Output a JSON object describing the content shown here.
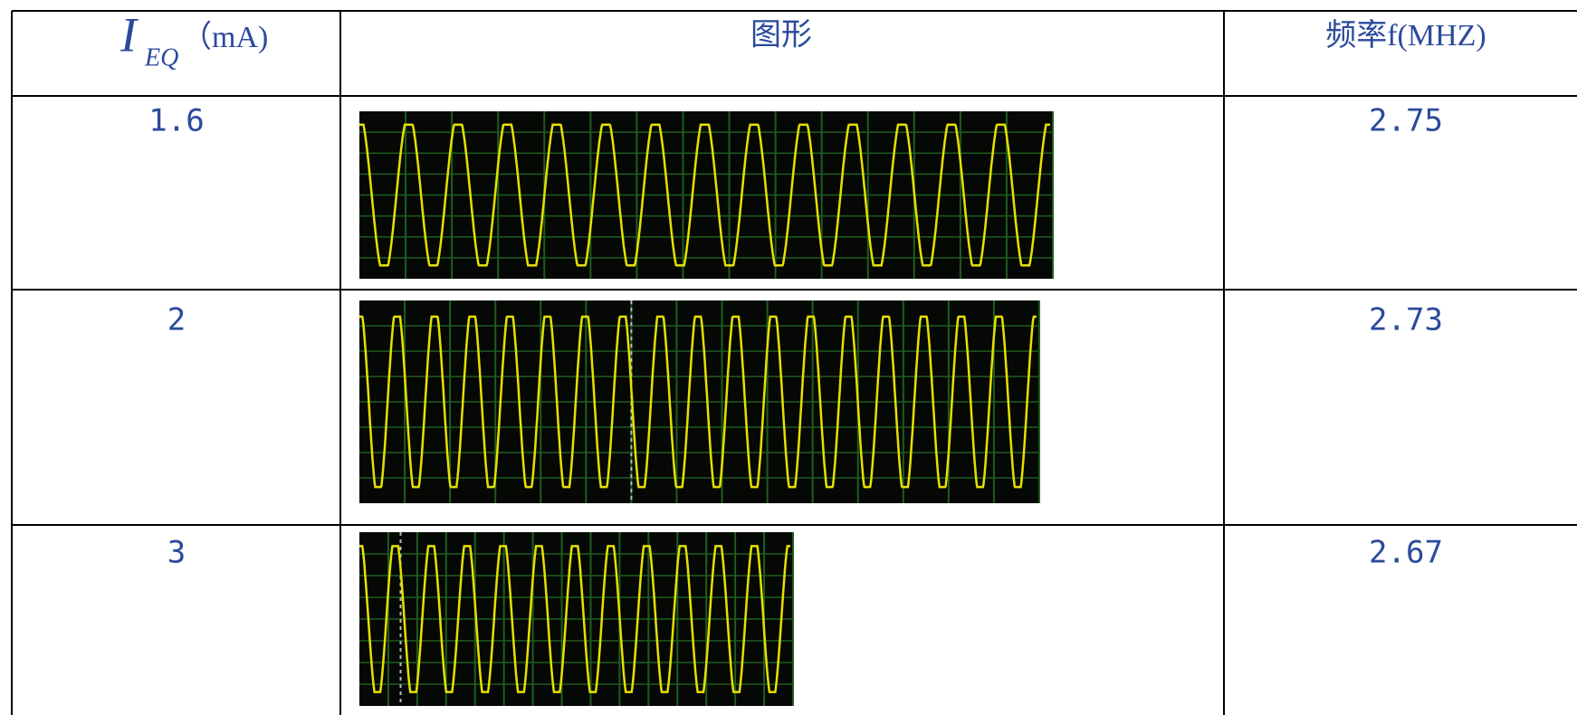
{
  "table": {
    "header": {
      "current": {
        "symbol": "I",
        "subscript": "EQ",
        "unit": "（mA)"
      },
      "waveform": "图形",
      "frequency": "频率f(MHZ)"
    },
    "rows": [
      {
        "current": 1.6,
        "frequency": 2.75
      },
      {
        "current": 2,
        "frequency": 2.73
      },
      {
        "current": 3,
        "frequency": 2.67
      }
    ]
  }
}
